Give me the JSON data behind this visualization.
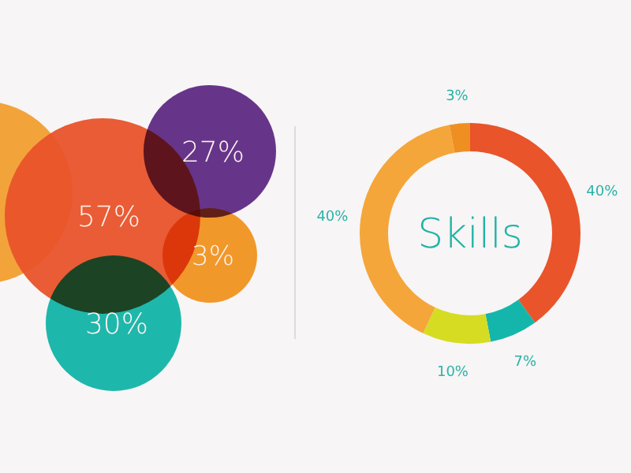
{
  "chart_data": [
    {
      "type": "other",
      "annotations": [
        "57%",
        "27%",
        "3%",
        "30%"
      ],
      "colors": [
        "#e8532a",
        "#5e2a84",
        "#f0921f",
        "#12b3a8"
      ]
    },
    {
      "type": "donut",
      "title": "Skills",
      "categories": [
        null,
        null,
        null,
        null,
        null
      ],
      "values": [
        40,
        7,
        10,
        40,
        3
      ],
      "value_labels": [
        "40%",
        "7%",
        "10%",
        "40%",
        "3%"
      ],
      "colors": [
        "#e9542a",
        "#14b6ab",
        "#d6dc22",
        "#f4a63a",
        "#ef8f22"
      ]
    }
  ]
}
